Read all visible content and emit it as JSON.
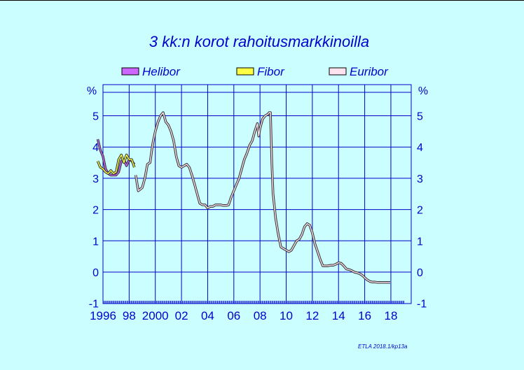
{
  "chart_data": {
    "type": "line",
    "title": "3 kk:n korot rahoitusmarkkinoilla",
    "y_unit_label": "%",
    "ylim": [
      -1,
      6
    ],
    "yticks": [
      -1,
      0,
      1,
      2,
      3,
      4,
      5
    ],
    "ytick_labels": [
      "-1",
      "0",
      "1",
      "2",
      "3",
      "4",
      "5"
    ],
    "xlim": [
      1995.6,
      2018.6
    ],
    "xticks": [
      1996,
      1998,
      2000,
      2002,
      2004,
      2006,
      2008,
      2010,
      2012,
      2014,
      2016,
      2018
    ],
    "xtick_labels": [
      "1996",
      "98",
      "2000",
      "02",
      "04",
      "06",
      "08",
      "10",
      "12",
      "14",
      "16",
      "18"
    ],
    "grid": true,
    "legend_position": "top",
    "credit": "ETLA 2018.1/kp13a",
    "series": [
      {
        "name": "Helibor",
        "color": "#cc66ff",
        "points": [
          [
            1995.6,
            4.25
          ],
          [
            1995.8,
            3.9
          ],
          [
            1996.0,
            3.7
          ],
          [
            1996.2,
            3.3
          ],
          [
            1996.4,
            3.15
          ],
          [
            1996.6,
            3.1
          ],
          [
            1996.8,
            3.1
          ],
          [
            1997.0,
            3.1
          ],
          [
            1997.2,
            3.2
          ],
          [
            1997.4,
            3.55
          ],
          [
            1997.6,
            3.6
          ],
          [
            1997.8,
            3.4
          ],
          [
            1998.0,
            3.6
          ],
          [
            1998.2,
            3.55
          ],
          [
            1998.4,
            3.45
          ]
        ]
      },
      {
        "name": "Fibor",
        "color": "#ffff44",
        "points": [
          [
            1995.6,
            3.55
          ],
          [
            1995.8,
            3.35
          ],
          [
            1996.0,
            3.3
          ],
          [
            1996.2,
            3.2
          ],
          [
            1996.4,
            3.15
          ],
          [
            1996.6,
            3.25
          ],
          [
            1996.8,
            3.15
          ],
          [
            1997.0,
            3.2
          ],
          [
            1997.2,
            3.6
          ],
          [
            1997.4,
            3.75
          ],
          [
            1997.6,
            3.5
          ],
          [
            1997.8,
            3.75
          ],
          [
            1998.0,
            3.6
          ],
          [
            1998.2,
            3.6
          ],
          [
            1998.4,
            3.35
          ]
        ]
      },
      {
        "name": "Euribor",
        "color": "#ffe4f0",
        "points": [
          [
            1998.5,
            3.1
          ],
          [
            1998.7,
            2.6
          ],
          [
            1999.0,
            2.7
          ],
          [
            1999.2,
            3.0
          ],
          [
            1999.4,
            3.45
          ],
          [
            1999.6,
            3.5
          ],
          [
            1999.8,
            4.1
          ],
          [
            2000.0,
            4.5
          ],
          [
            2000.2,
            4.8
          ],
          [
            2000.4,
            5.0
          ],
          [
            2000.6,
            5.1
          ],
          [
            2000.8,
            4.8
          ],
          [
            2001.0,
            4.7
          ],
          [
            2001.2,
            4.5
          ],
          [
            2001.4,
            4.2
          ],
          [
            2001.6,
            3.7
          ],
          [
            2001.8,
            3.4
          ],
          [
            2002.0,
            3.35
          ],
          [
            2002.2,
            3.4
          ],
          [
            2002.4,
            3.45
          ],
          [
            2002.6,
            3.35
          ],
          [
            2002.8,
            3.1
          ],
          [
            2003.0,
            2.8
          ],
          [
            2003.2,
            2.5
          ],
          [
            2003.4,
            2.2
          ],
          [
            2003.6,
            2.15
          ],
          [
            2003.8,
            2.15
          ],
          [
            2004.0,
            2.05
          ],
          [
            2004.2,
            2.1
          ],
          [
            2004.4,
            2.1
          ],
          [
            2004.6,
            2.15
          ],
          [
            2004.8,
            2.15
          ],
          [
            2005.0,
            2.15
          ],
          [
            2005.2,
            2.13
          ],
          [
            2005.4,
            2.13
          ],
          [
            2005.6,
            2.15
          ],
          [
            2005.8,
            2.4
          ],
          [
            2006.0,
            2.6
          ],
          [
            2006.2,
            2.8
          ],
          [
            2006.4,
            3.0
          ],
          [
            2006.6,
            3.3
          ],
          [
            2006.8,
            3.6
          ],
          [
            2007.0,
            3.8
          ],
          [
            2007.2,
            4.05
          ],
          [
            2007.4,
            4.2
          ],
          [
            2007.6,
            4.5
          ],
          [
            2007.8,
            4.75
          ],
          [
            2007.9,
            4.35
          ],
          [
            2008.0,
            4.6
          ],
          [
            2008.2,
            4.9
          ],
          [
            2008.4,
            5.0
          ],
          [
            2008.6,
            5.05
          ],
          [
            2008.7,
            5.1
          ],
          [
            2008.8,
            5.1
          ],
          [
            2008.9,
            3.5
          ],
          [
            2009.0,
            2.5
          ],
          [
            2009.2,
            1.7
          ],
          [
            2009.4,
            1.2
          ],
          [
            2009.6,
            0.8
          ],
          [
            2009.8,
            0.75
          ],
          [
            2010.0,
            0.7
          ],
          [
            2010.2,
            0.65
          ],
          [
            2010.4,
            0.7
          ],
          [
            2010.6,
            0.85
          ],
          [
            2010.8,
            1.0
          ],
          [
            2011.0,
            1.05
          ],
          [
            2011.2,
            1.2
          ],
          [
            2011.4,
            1.45
          ],
          [
            2011.6,
            1.55
          ],
          [
            2011.8,
            1.5
          ],
          [
            2012.0,
            1.25
          ],
          [
            2012.2,
            0.9
          ],
          [
            2012.4,
            0.65
          ],
          [
            2012.6,
            0.4
          ],
          [
            2012.8,
            0.2
          ],
          [
            2013.0,
            0.2
          ],
          [
            2013.2,
            0.2
          ],
          [
            2013.4,
            0.22
          ],
          [
            2013.6,
            0.22
          ],
          [
            2013.8,
            0.25
          ],
          [
            2014.0,
            0.3
          ],
          [
            2014.2,
            0.28
          ],
          [
            2014.4,
            0.2
          ],
          [
            2014.6,
            0.1
          ],
          [
            2014.8,
            0.08
          ],
          [
            2015.0,
            0.05
          ],
          [
            2015.2,
            0.0
          ],
          [
            2015.4,
            -0.02
          ],
          [
            2015.6,
            -0.05
          ],
          [
            2015.8,
            -0.1
          ],
          [
            2016.0,
            -0.18
          ],
          [
            2016.2,
            -0.25
          ],
          [
            2016.4,
            -0.3
          ],
          [
            2016.6,
            -0.32
          ],
          [
            2016.8,
            -0.32
          ],
          [
            2017.0,
            -0.33
          ],
          [
            2017.2,
            -0.33
          ],
          [
            2017.4,
            -0.33
          ],
          [
            2017.6,
            -0.33
          ],
          [
            2017.8,
            -0.33
          ],
          [
            2017.95,
            -0.33
          ]
        ]
      }
    ]
  }
}
